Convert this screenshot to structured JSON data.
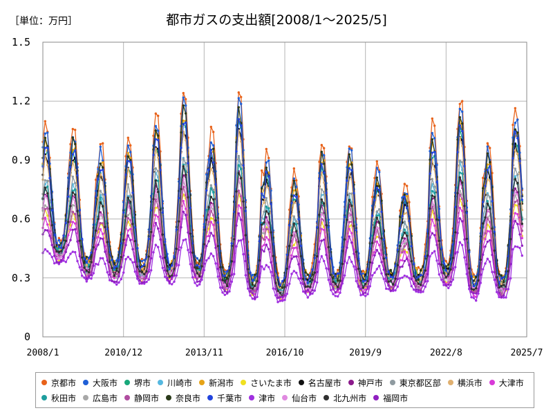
{
  "unit_label": "［単位：万円］",
  "title": "都市ガスの支出額[2008/1～2025/5]",
  "colors": {
    "京都市": "#e8621a",
    "大阪市": "#1f5fd6",
    "堺市": "#18a87a",
    "川崎市": "#55b8e0",
    "新潟市": "#e6a317",
    "さいたま市": "#f0e020",
    "名古屋市": "#111111",
    "神戸市": "#8b1a8b",
    "東京都区部": "#8f9aa0",
    "横浜市": "#e0b070",
    "大津市": "#d83ad8",
    "秋田市": "#1e9e9e",
    "広島市": "#a8a8a8",
    "静岡市": "#b04da0",
    "奈良市": "#2a3a1a",
    "千葉市": "#2244dd",
    "津市": "#a030e0",
    "仙台市": "#e08ae0",
    "北九州市": "#303030",
    "福岡市": "#9020c0"
  },
  "chart_data": {
    "type": "line",
    "title": "都市ガスの支出額[2008/1～2025/5]",
    "ylabel": "［単位：万円］",
    "ylim": [
      0,
      1.5
    ],
    "yticks": [
      "0",
      "0.3",
      "0.6",
      "0.9",
      "1.2",
      "1.5"
    ],
    "xticks": [
      "2008/1",
      "2010/12",
      "2013/11",
      "2016/10",
      "2019/9",
      "2022/8",
      "2025/7"
    ],
    "x_start": "2008/1",
    "x_end": "2025/5",
    "grid": true,
    "legend_position": "bottom",
    "peaks": [
      {
        "year": 2008,
        "max": 1.1,
        "min": 0.3
      },
      {
        "year": 2009,
        "max": 1.09,
        "min": 0.22
      },
      {
        "year": 2010,
        "max": 0.99,
        "min": 0.2
      },
      {
        "year": 2011,
        "max": 1.03,
        "min": 0.19
      },
      {
        "year": 2012,
        "max": 1.15,
        "min": 0.2
      },
      {
        "year": 2013,
        "max": 1.26,
        "min": 0.2
      },
      {
        "year": 2014,
        "max": 1.06,
        "min": 0.15
      },
      {
        "year": 2015,
        "max": 1.26,
        "min": 0.12
      },
      {
        "year": 2016,
        "max": 0.94,
        "min": 0.1
      },
      {
        "year": 2017,
        "max": 0.84,
        "min": 0.14
      },
      {
        "year": 2018,
        "max": 1.01,
        "min": 0.14
      },
      {
        "year": 2019,
        "max": 1.0,
        "min": 0.14
      },
      {
        "year": 2020,
        "max": 0.89,
        "min": 0.16
      },
      {
        "year": 2021,
        "max": 0.79,
        "min": 0.15
      },
      {
        "year": 2022,
        "max": 1.09,
        "min": 0.18
      },
      {
        "year": 2023,
        "max": 1.22,
        "min": 0.12
      },
      {
        "year": 2024,
        "max": 1.0,
        "min": 0.12
      },
      {
        "year": 2025,
        "max": 1.17,
        "min": 0.3
      }
    ],
    "series": [
      {
        "name": "京都市",
        "factor": 1.0
      },
      {
        "name": "大阪市",
        "factor": 0.96
      },
      {
        "name": "堺市",
        "factor": 0.86
      },
      {
        "name": "川崎市",
        "factor": 0.72
      },
      {
        "name": "新潟市",
        "factor": 0.9
      },
      {
        "name": "さいたま市",
        "factor": 0.58
      },
      {
        "name": "名古屋市",
        "factor": 0.84
      },
      {
        "name": "神戸市",
        "factor": 0.66
      },
      {
        "name": "東京都区部",
        "factor": 0.74
      },
      {
        "name": "横浜市",
        "factor": 0.82
      },
      {
        "name": "大津市",
        "factor": 0.54
      },
      {
        "name": "秋田市",
        "factor": 0.7
      },
      {
        "name": "広島市",
        "factor": 0.62
      },
      {
        "name": "静岡市",
        "factor": 0.6
      },
      {
        "name": "奈良市",
        "factor": 0.92
      },
      {
        "name": "千葉市",
        "factor": 0.88
      },
      {
        "name": "津市",
        "factor": 0.4
      },
      {
        "name": "仙台市",
        "factor": 0.64
      },
      {
        "name": "北九州市",
        "factor": 0.68
      },
      {
        "name": "福岡市",
        "factor": 0.5
      }
    ]
  }
}
